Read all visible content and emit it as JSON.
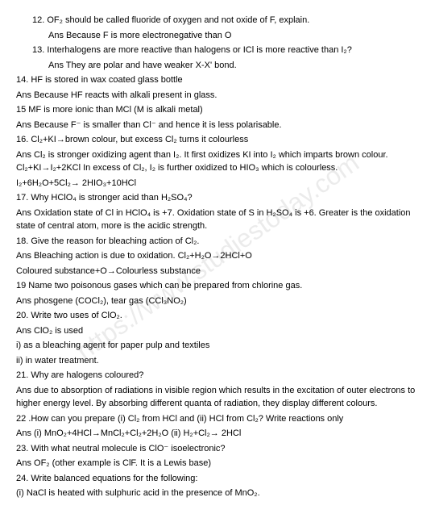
{
  "watermark": "https://www.studiestoday.com",
  "lines": [
    {
      "text": "12. OF₂ should be called fluoride of oxygen and not oxide of F, explain.",
      "indent": 1
    },
    {
      "text": "Ans Because F is more electronegative than O",
      "indent": 2
    },
    {
      "text": "13. Interhalogens are more reactive than halogens or ICl is more reactive than I₂?",
      "indent": 1
    },
    {
      "text": "Ans They are polar and have weaker X-X' bond.",
      "indent": 2
    },
    {
      "text": "14. HF is stored in wax coated glass bottle",
      "indent": 0
    },
    {
      "text": "Ans Because HF reacts with alkali present in glass.",
      "indent": 0
    },
    {
      "text": "15 MF is more ionic than MCl (M is alkali metal)",
      "indent": 0
    },
    {
      "text": "Ans Because F⁻ is smaller than Cl⁻ and hence it is less polarisable.",
      "indent": 0
    },
    {
      "text": "16. Cl₂+KI→brown colour, but excess Cl₂ turns it colourless",
      "indent": 0
    },
    {
      "text": "Ans Cl₂ is stronger oxidizing agent than I₂. It first oxidizes KI into I₂ which imparts brown colour. Cl₂+KI→I₂+2KCl In excess of Cl₂, I₂ is further oxidized to HIO₃ which is colourless.",
      "indent": 0
    },
    {
      "text": "I₂+6H₂O+5Cl₂→ 2HIO₃+10HCl",
      "indent": 0
    },
    {
      "text": "17. Why HClO₄ is stronger acid than H₂SO₄?",
      "indent": 0
    },
    {
      "text": "Ans Oxidation state of Cl in HClO₄ is +7. Oxidation state of S in H₂SO₄ is +6. Greater is the oxidation state of central atom, more is the acidic strength.",
      "indent": 0
    },
    {
      "text": "18. Give the reason for bleaching action of Cl₂.",
      "indent": 0
    },
    {
      "text": "Ans Bleaching action is due to oxidation. Cl₂+H₂O→2HCl+O",
      "indent": 0
    },
    {
      "text": "Coloured substance+O→Colourless substance",
      "indent": 0
    },
    {
      "text": "19 Name two poisonous gases which can be prepared from chlorine gas.",
      "indent": 0
    },
    {
      "text": "Ans phosgene (COCl₂), tear gas (CCl₃NO₂)",
      "indent": 0
    },
    {
      "text": "20. Write two uses of ClO₂.",
      "indent": 0
    },
    {
      "text": "Ans ClO₂ is used",
      "indent": 0
    },
    {
      "text": "i) as a bleaching agent for paper pulp and textiles",
      "indent": 0
    },
    {
      "text": "ii) in water treatment.",
      "indent": 0
    },
    {
      "text": "21. Why are halogens coloured?",
      "indent": 0
    },
    {
      "text": "Ans due to absorption of radiations in visible region which results in the excitation of outer electrons to higher energy level. By absorbing different quanta of radiation, they display different colours.",
      "indent": 0
    },
    {
      "text": "22 .How can you prepare (i) Cl₂ from HCl and (ii) HCl from Cl₂? Write reactions only",
      "indent": 0
    },
    {
      "text": "Ans (i) MnO₂+4HCl→MnCl₂+Cl₂+2H₂O (ii) H₂+Cl₂→ 2HCl",
      "indent": 0
    },
    {
      "text": "23. With what neutral molecule is ClO⁻ isoelectronic?",
      "indent": 0
    },
    {
      "text": "Ans OF₂ (other example is ClF. It is a Lewis base)",
      "indent": 0
    },
    {
      "text": "24. Write balanced equations for the following:",
      "indent": 0
    },
    {
      "text": "(i) NaCl is heated with sulphuric acid in the presence of MnO₂.",
      "indent": 0
    }
  ]
}
